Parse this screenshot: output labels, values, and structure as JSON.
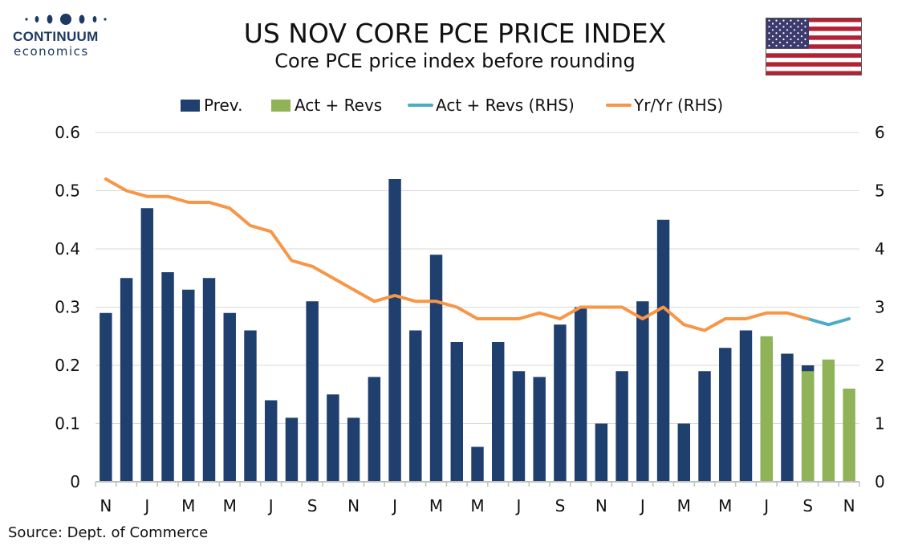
{
  "brand": {
    "name_line1": "CONTINUUM",
    "name_line2": "economics"
  },
  "title": "US NOV CORE PCE PRICE INDEX",
  "subtitle": "Core PCE price index before rounding",
  "source": "Source: Dept. of Commerce",
  "colors": {
    "prev": "#1f3f6e",
    "act": "#8fb356",
    "act_line": "#4bacc6",
    "yoy": "#f79646",
    "grid": "#d9d9d9",
    "axis": "#bfbfbf",
    "logo": "#1d3a63"
  },
  "chart_data": {
    "type": "bar",
    "legend": [
      {
        "label": "Prev.",
        "kind": "bar",
        "color": "#1f3f6e"
      },
      {
        "label": "Act + Revs",
        "kind": "bar",
        "color": "#8fb356"
      },
      {
        "label": "Act + Revs (RHS)",
        "kind": "line",
        "color": "#4bacc6"
      },
      {
        "label": "Yr/Yr (RHS)",
        "kind": "line",
        "color": "#f79646"
      }
    ],
    "x_tick_labels": [
      "N",
      "J",
      "M",
      "M",
      "J",
      "S",
      "N",
      "J",
      "M",
      "M",
      "J",
      "S",
      "N",
      "J",
      "M",
      "M",
      "J",
      "S",
      "N"
    ],
    "n_periods": 37,
    "y_left": {
      "min": 0,
      "max": 0.6,
      "ticks": [
        "0",
        "0.1",
        "0.2",
        "0.3",
        "0.4",
        "0.5",
        "0.6"
      ]
    },
    "y_right": {
      "min": 0,
      "max": 6,
      "ticks": [
        "0",
        "1",
        "2",
        "3",
        "4",
        "5",
        "6"
      ]
    },
    "series": [
      {
        "name": "Prev.",
        "axis": "left",
        "type": "bar",
        "values": [
          0.29,
          0.35,
          0.47,
          0.36,
          0.33,
          0.35,
          0.29,
          0.26,
          0.14,
          0.11,
          0.31,
          0.15,
          0.11,
          0.18,
          0.52,
          0.26,
          0.39,
          0.24,
          0.06,
          0.24,
          0.19,
          0.18,
          0.27,
          0.3,
          0.1,
          0.19,
          0.31,
          0.45,
          0.1,
          0.19,
          0.23,
          0.26,
          0.24,
          0.22,
          0.2,
          null,
          null
        ]
      },
      {
        "name": "Act + Revs",
        "axis": "left",
        "type": "bar",
        "values": [
          null,
          null,
          null,
          null,
          null,
          null,
          null,
          null,
          null,
          null,
          null,
          null,
          null,
          null,
          null,
          null,
          null,
          null,
          null,
          null,
          null,
          null,
          null,
          null,
          null,
          null,
          null,
          null,
          null,
          null,
          null,
          null,
          0.25,
          null,
          0.19,
          0.21,
          0.16
        ]
      },
      {
        "name": "Act + Revs (RHS)",
        "axis": "right",
        "type": "line",
        "values": [
          null,
          null,
          null,
          null,
          null,
          null,
          null,
          null,
          null,
          null,
          null,
          null,
          null,
          null,
          null,
          null,
          null,
          null,
          null,
          null,
          null,
          null,
          null,
          null,
          null,
          null,
          null,
          null,
          null,
          null,
          null,
          null,
          null,
          null,
          2.8,
          2.7,
          2.8
        ]
      },
      {
        "name": "Yr/Yr (RHS)",
        "axis": "right",
        "type": "line",
        "values": [
          5.2,
          5.0,
          4.9,
          4.9,
          4.8,
          4.8,
          4.7,
          4.4,
          4.3,
          3.8,
          3.7,
          3.5,
          3.3,
          3.1,
          3.2,
          3.1,
          3.1,
          3.0,
          2.8,
          2.8,
          2.8,
          2.9,
          2.8,
          3.0,
          3.0,
          3.0,
          2.8,
          3.0,
          2.7,
          2.6,
          2.8,
          2.8,
          2.9,
          2.9,
          2.8,
          null,
          null
        ]
      }
    ]
  }
}
